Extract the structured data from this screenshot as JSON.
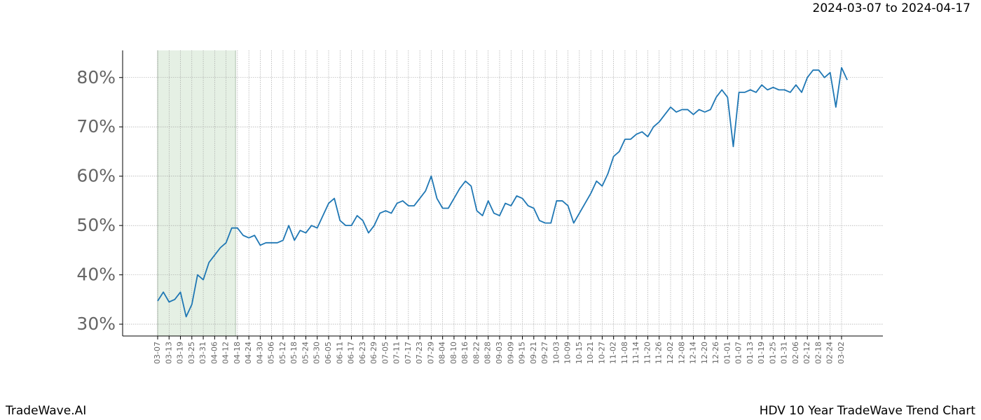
{
  "chart_data": {
    "type": "line",
    "title": "HDV 10 Year TradeWave Trend Chart",
    "subtitle": "2024-03-07 to 2024-04-17",
    "brand": "TradeWave.AI",
    "x": [
      "03-07",
      "03-10",
      "03-13",
      "03-16",
      "03-19",
      "03-22",
      "03-25",
      "03-28",
      "03-31",
      "04-03",
      "04-06",
      "04-09",
      "04-12",
      "04-15",
      "04-18",
      "04-21",
      "04-24",
      "04-27",
      "04-30",
      "05-03",
      "05-06",
      "05-09",
      "05-12",
      "05-15",
      "05-18",
      "05-21",
      "05-24",
      "05-27",
      "05-30",
      "06-02",
      "06-05",
      "06-08",
      "06-11",
      "06-14",
      "06-17",
      "06-20",
      "06-23",
      "06-26",
      "06-29",
      "07-02",
      "07-05",
      "07-08",
      "07-11",
      "07-14",
      "07-17",
      "07-20",
      "07-23",
      "07-26",
      "07-29",
      "08-01",
      "08-04",
      "08-07",
      "08-10",
      "08-13",
      "08-16",
      "08-19",
      "08-22",
      "08-25",
      "08-28",
      "08-31",
      "09-03",
      "09-06",
      "09-09",
      "09-12",
      "09-15",
      "09-18",
      "09-21",
      "09-24",
      "09-27",
      "09-30",
      "10-03",
      "10-06",
      "10-09",
      "10-12",
      "10-15",
      "10-18",
      "10-21",
      "10-24",
      "10-27",
      "10-30",
      "11-02",
      "11-05",
      "11-08",
      "11-11",
      "11-14",
      "11-17",
      "11-20",
      "11-23",
      "11-26",
      "11-29",
      "12-02",
      "12-05",
      "12-08",
      "12-11",
      "12-14",
      "12-17",
      "12-20",
      "12-23",
      "12-26",
      "12-29",
      "01-01",
      "01-04",
      "01-07",
      "01-10",
      "01-13",
      "01-16",
      "01-19",
      "01-22",
      "01-25",
      "01-28",
      "01-31",
      "02-03",
      "02-06",
      "02-09",
      "02-12",
      "02-15",
      "02-18",
      "02-21",
      "02-24",
      "02-27",
      "03-02",
      "03-05"
    ],
    "series": [
      {
        "color": "#1f77b4",
        "values": [
          34.7,
          36.5,
          34.5,
          35,
          36.5,
          31.5,
          34,
          40,
          39,
          42.5,
          44,
          45.5,
          46.5,
          49.5,
          49.5,
          48,
          47.5,
          48,
          46,
          46.5,
          46.5,
          46.5,
          47,
          50,
          47,
          49,
          48.5,
          50,
          49.5,
          52,
          54.5,
          55.5,
          51,
          50,
          50,
          52,
          51,
          48.5,
          50,
          52.5,
          53,
          52.5,
          54.5,
          55,
          54,
          54,
          55.5,
          57,
          60,
          55.5,
          53.5,
          53.5,
          55.5,
          57.5,
          59,
          58,
          53,
          52,
          55,
          52.5,
          52,
          54.5,
          54,
          56,
          55.5,
          54,
          53.5,
          51,
          50.5,
          50.5,
          55,
          55,
          54,
          50.5,
          52.5,
          54.5,
          56.5,
          59,
          58,
          60.5,
          64,
          65,
          67.5,
          67.5,
          68.5,
          69,
          68,
          70,
          71,
          72.5,
          74,
          73,
          73.5,
          73.5,
          72.5,
          73.5,
          73,
          73.5,
          76,
          77.5,
          76,
          66,
          77,
          77,
          77.5,
          77,
          78.5,
          77.5,
          78,
          77.5,
          77.5,
          77,
          78.5,
          77,
          80,
          81.5,
          81.5,
          80,
          81,
          74,
          82,
          79.5
        ]
      }
    ],
    "xticks": [
      "03-07",
      "03-13",
      "03-19",
      "03-25",
      "03-31",
      "04-06",
      "04-12",
      "04-18",
      "04-24",
      "04-30",
      "05-06",
      "05-12",
      "05-18",
      "05-24",
      "05-30",
      "06-05",
      "06-11",
      "06-17",
      "06-23",
      "06-29",
      "07-05",
      "07-11",
      "07-17",
      "07-23",
      "07-29",
      "08-04",
      "08-10",
      "08-16",
      "08-22",
      "08-28",
      "09-03",
      "09-09",
      "09-15",
      "09-21",
      "09-27",
      "10-03",
      "10-09",
      "10-15",
      "10-21",
      "10-27",
      "11-02",
      "11-08",
      "11-14",
      "11-20",
      "11-26",
      "12-02",
      "12-08",
      "12-14",
      "12-20",
      "12-26",
      "01-01",
      "01-07",
      "01-13",
      "01-19",
      "01-25",
      "01-31",
      "02-06",
      "02-12",
      "02-18",
      "02-24",
      "03-02"
    ],
    "ylim": [
      27.6,
      85.5
    ],
    "yticks": [
      {
        "value": 30,
        "label": "30%"
      },
      {
        "value": 40,
        "label": "40%"
      },
      {
        "value": 50,
        "label": "50%"
      },
      {
        "value": 60,
        "label": "60%"
      },
      {
        "value": 70,
        "label": "70%"
      },
      {
        "value": 80,
        "label": "80%"
      }
    ],
    "highlight": [
      "03-07",
      "04-17"
    ],
    "highlight_color": "#e5f0e4",
    "grid": true
  }
}
